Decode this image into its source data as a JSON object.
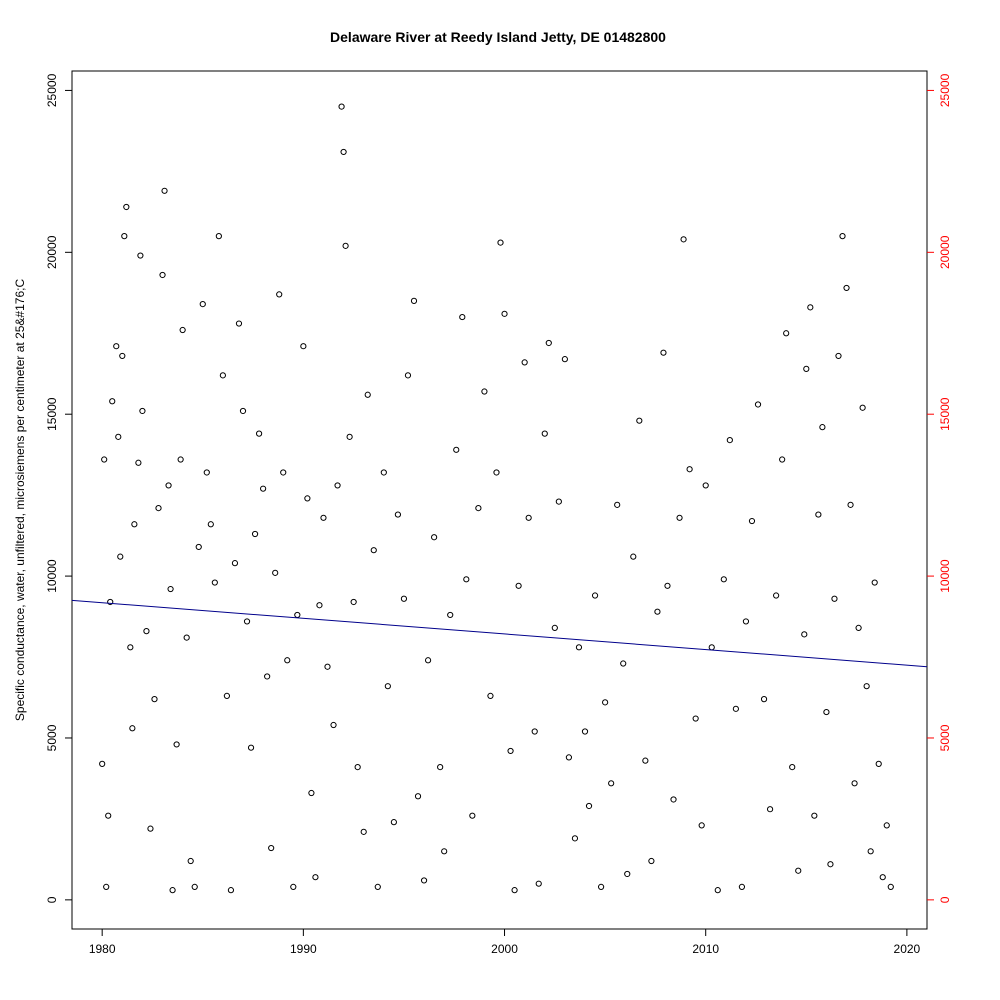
{
  "chart_data": {
    "type": "scatter",
    "title": "Delaware River at Reedy Island Jetty, DE 01482800",
    "xlabel": "",
    "ylabel": "Specific conductance, water, unfiltered, microsiemens per centimeter at 25&#176;C",
    "xlim": [
      1978.5,
      2021
    ],
    "ylim": [
      -900,
      25600
    ],
    "x_ticks": [
      1980,
      1990,
      2000,
      2010,
      2020
    ],
    "y_ticks": [
      0,
      5000,
      10000,
      15000,
      20000,
      25000
    ],
    "y_ticks_right": [
      0,
      5000,
      10000,
      15000,
      20000,
      25000
    ],
    "grid": false,
    "colors": {
      "points": "#000000",
      "trend": "#00008b",
      "right_axis": "#ff0000",
      "axes": "#000000"
    },
    "trend_line": {
      "x": [
        1978.5,
        2021
      ],
      "y": [
        9250,
        7200
      ]
    },
    "series": [
      {
        "values_note": "",
        "points": [
          [
            1980.0,
            4200
          ],
          [
            1980.1,
            13600
          ],
          [
            1980.2,
            400
          ],
          [
            1980.3,
            2600
          ],
          [
            1980.4,
            9200
          ],
          [
            1980.5,
            15400
          ],
          [
            1980.7,
            17100
          ],
          [
            1980.8,
            14300
          ],
          [
            1980.9,
            10600
          ],
          [
            1981.0,
            16800
          ],
          [
            1981.1,
            20500
          ],
          [
            1981.2,
            21400
          ],
          [
            1981.4,
            7800
          ],
          [
            1981.5,
            5300
          ],
          [
            1981.6,
            11600
          ],
          [
            1981.8,
            13500
          ],
          [
            1981.9,
            19900
          ],
          [
            1982.0,
            15100
          ],
          [
            1982.2,
            8300
          ],
          [
            1982.4,
            2200
          ],
          [
            1982.6,
            6200
          ],
          [
            1982.8,
            12100
          ],
          [
            1983.0,
            19300
          ],
          [
            1983.1,
            21900
          ],
          [
            1983.3,
            12800
          ],
          [
            1983.4,
            9600
          ],
          [
            1983.5,
            300
          ],
          [
            1983.7,
            4800
          ],
          [
            1983.9,
            13600
          ],
          [
            1984.0,
            17600
          ],
          [
            1984.2,
            8100
          ],
          [
            1984.4,
            1200
          ],
          [
            1984.6,
            400
          ],
          [
            1984.8,
            10900
          ],
          [
            1985.0,
            18400
          ],
          [
            1985.2,
            13200
          ],
          [
            1985.4,
            11600
          ],
          [
            1985.6,
            9800
          ],
          [
            1985.8,
            20500
          ],
          [
            1986.0,
            16200
          ],
          [
            1986.2,
            6300
          ],
          [
            1986.4,
            300
          ],
          [
            1986.6,
            10400
          ],
          [
            1986.8,
            17800
          ],
          [
            1987.0,
            15100
          ],
          [
            1987.2,
            8600
          ],
          [
            1987.4,
            4700
          ],
          [
            1987.6,
            11300
          ],
          [
            1987.8,
            14400
          ],
          [
            1988.0,
            12700
          ],
          [
            1988.2,
            6900
          ],
          [
            1988.4,
            1600
          ],
          [
            1988.6,
            10100
          ],
          [
            1988.8,
            18700
          ],
          [
            1989.0,
            13200
          ],
          [
            1989.2,
            7400
          ],
          [
            1989.5,
            400
          ],
          [
            1989.7,
            8800
          ],
          [
            1990.0,
            17100
          ],
          [
            1990.2,
            12400
          ],
          [
            1990.4,
            3300
          ],
          [
            1990.6,
            700
          ],
          [
            1990.8,
            9100
          ],
          [
            1991.0,
            11800
          ],
          [
            1991.2,
            7200
          ],
          [
            1991.5,
            5400
          ],
          [
            1991.7,
            12800
          ],
          [
            1991.9,
            24500
          ],
          [
            1992.0,
            23100
          ],
          [
            1992.1,
            20200
          ],
          [
            1992.3,
            14300
          ],
          [
            1992.5,
            9200
          ],
          [
            1992.7,
            4100
          ],
          [
            1993.0,
            2100
          ],
          [
            1993.2,
            15600
          ],
          [
            1993.5,
            10800
          ],
          [
            1993.7,
            400
          ],
          [
            1994.0,
            13200
          ],
          [
            1994.2,
            6600
          ],
          [
            1994.5,
            2400
          ],
          [
            1994.7,
            11900
          ],
          [
            1995.0,
            9300
          ],
          [
            1995.2,
            16200
          ],
          [
            1995.5,
            18500
          ],
          [
            1995.7,
            3200
          ],
          [
            1996.0,
            600
          ],
          [
            1996.2,
            7400
          ],
          [
            1996.5,
            11200
          ],
          [
            1996.8,
            4100
          ],
          [
            1997.0,
            1500
          ],
          [
            1997.3,
            8800
          ],
          [
            1997.6,
            13900
          ],
          [
            1997.9,
            18000
          ],
          [
            1998.1,
            9900
          ],
          [
            1998.4,
            2600
          ],
          [
            1998.7,
            12100
          ],
          [
            1999.0,
            15700
          ],
          [
            1999.3,
            6300
          ],
          [
            1999.6,
            13200
          ],
          [
            1999.8,
            20300
          ],
          [
            2000.0,
            18100
          ],
          [
            2000.3,
            4600
          ],
          [
            2000.5,
            300
          ],
          [
            2000.7,
            9700
          ],
          [
            2001.0,
            16600
          ],
          [
            2001.2,
            11800
          ],
          [
            2001.5,
            5200
          ],
          [
            2001.7,
            500
          ],
          [
            2002.0,
            14400
          ],
          [
            2002.2,
            17200
          ],
          [
            2002.5,
            8400
          ],
          [
            2002.7,
            12300
          ],
          [
            2003.0,
            16700
          ],
          [
            2003.2,
            4400
          ],
          [
            2003.5,
            1900
          ],
          [
            2003.7,
            7800
          ],
          [
            2004.0,
            5200
          ],
          [
            2004.2,
            2900
          ],
          [
            2004.5,
            9400
          ],
          [
            2004.8,
            400
          ],
          [
            2005.0,
            6100
          ],
          [
            2005.3,
            3600
          ],
          [
            2005.6,
            12200
          ],
          [
            2005.9,
            7300
          ],
          [
            2006.1,
            800
          ],
          [
            2006.4,
            10600
          ],
          [
            2006.7,
            14800
          ],
          [
            2007.0,
            4300
          ],
          [
            2007.3,
            1200
          ],
          [
            2007.6,
            8900
          ],
          [
            2007.9,
            16900
          ],
          [
            2008.1,
            9700
          ],
          [
            2008.4,
            3100
          ],
          [
            2008.7,
            11800
          ],
          [
            2008.9,
            20400
          ],
          [
            2009.2,
            13300
          ],
          [
            2009.5,
            5600
          ],
          [
            2009.8,
            2300
          ],
          [
            2010.0,
            12800
          ],
          [
            2010.3,
            7800
          ],
          [
            2010.6,
            300
          ],
          [
            2010.9,
            9900
          ],
          [
            2011.2,
            14200
          ],
          [
            2011.5,
            5900
          ],
          [
            2011.8,
            400
          ],
          [
            2012.0,
            8600
          ],
          [
            2012.3,
            11700
          ],
          [
            2012.6,
            15300
          ],
          [
            2012.9,
            6200
          ],
          [
            2013.2,
            2800
          ],
          [
            2013.5,
            9400
          ],
          [
            2013.8,
            13600
          ],
          [
            2014.0,
            17500
          ],
          [
            2014.3,
            4100
          ],
          [
            2014.6,
            900
          ],
          [
            2014.9,
            8200
          ],
          [
            2015.0,
            16400
          ],
          [
            2015.2,
            18300
          ],
          [
            2015.4,
            2600
          ],
          [
            2015.6,
            11900
          ],
          [
            2015.8,
            14600
          ],
          [
            2016.0,
            5800
          ],
          [
            2016.2,
            1100
          ],
          [
            2016.4,
            9300
          ],
          [
            2016.6,
            16800
          ],
          [
            2016.8,
            20500
          ],
          [
            2017.0,
            18900
          ],
          [
            2017.2,
            12200
          ],
          [
            2017.4,
            3600
          ],
          [
            2017.6,
            8400
          ],
          [
            2017.8,
            15200
          ],
          [
            2018.0,
            6600
          ],
          [
            2018.2,
            1500
          ],
          [
            2018.4,
            9800
          ],
          [
            2018.6,
            4200
          ],
          [
            2018.8,
            700
          ],
          [
            2019.0,
            2300
          ],
          [
            2019.2,
            400
          ]
        ]
      }
    ]
  }
}
